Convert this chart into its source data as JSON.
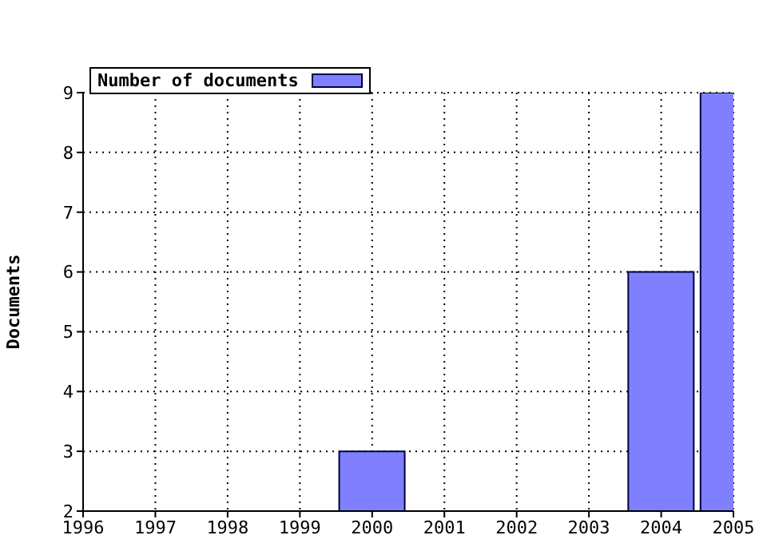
{
  "chart_data": {
    "type": "bar",
    "ylabel": "Documents",
    "x": [
      2000,
      2004,
      2005
    ],
    "series": [
      {
        "name": "Number of documents",
        "color": "#8080ff",
        "values": [
          3,
          6,
          9
        ]
      }
    ],
    "xlim": [
      1996,
      2005
    ],
    "xticks": [
      1996,
      1997,
      1998,
      1999,
      2000,
      2001,
      2002,
      2003,
      2004,
      2005
    ],
    "ylim": [
      2,
      9
    ],
    "yticks": [
      2,
      3,
      4,
      5,
      6,
      7,
      8,
      9
    ],
    "grid": true,
    "legend": "top left"
  }
}
